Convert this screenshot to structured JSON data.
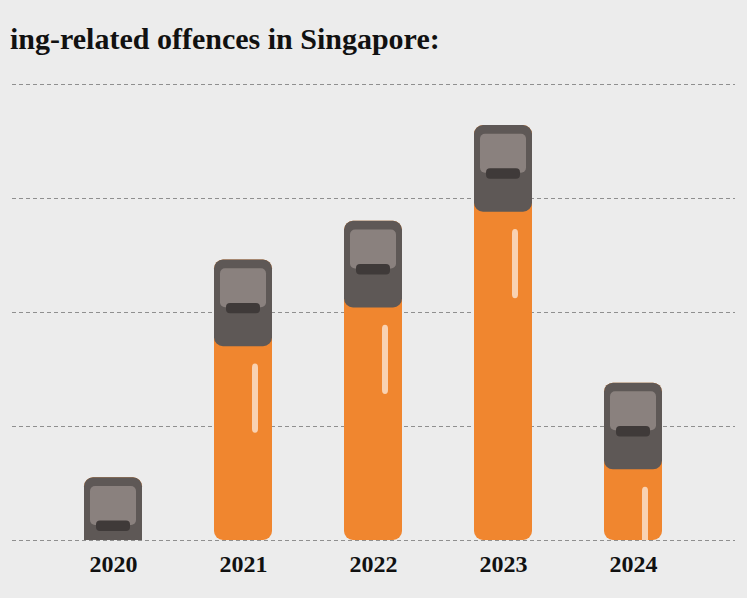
{
  "chart_data": {
    "type": "bar",
    "title": "ing-related offences in Singapore:",
    "categories": [
      "2020",
      "2021",
      "2022",
      "2023",
      "2024"
    ],
    "values": [
      0.55,
      2.46,
      2.8,
      3.64,
      1.38
    ],
    "color": "#f0862f",
    "ylim": [
      0,
      4
    ],
    "yticks": [
      0,
      1,
      2,
      3,
      4
    ],
    "grid": true,
    "tick_labels": "x"
  }
}
